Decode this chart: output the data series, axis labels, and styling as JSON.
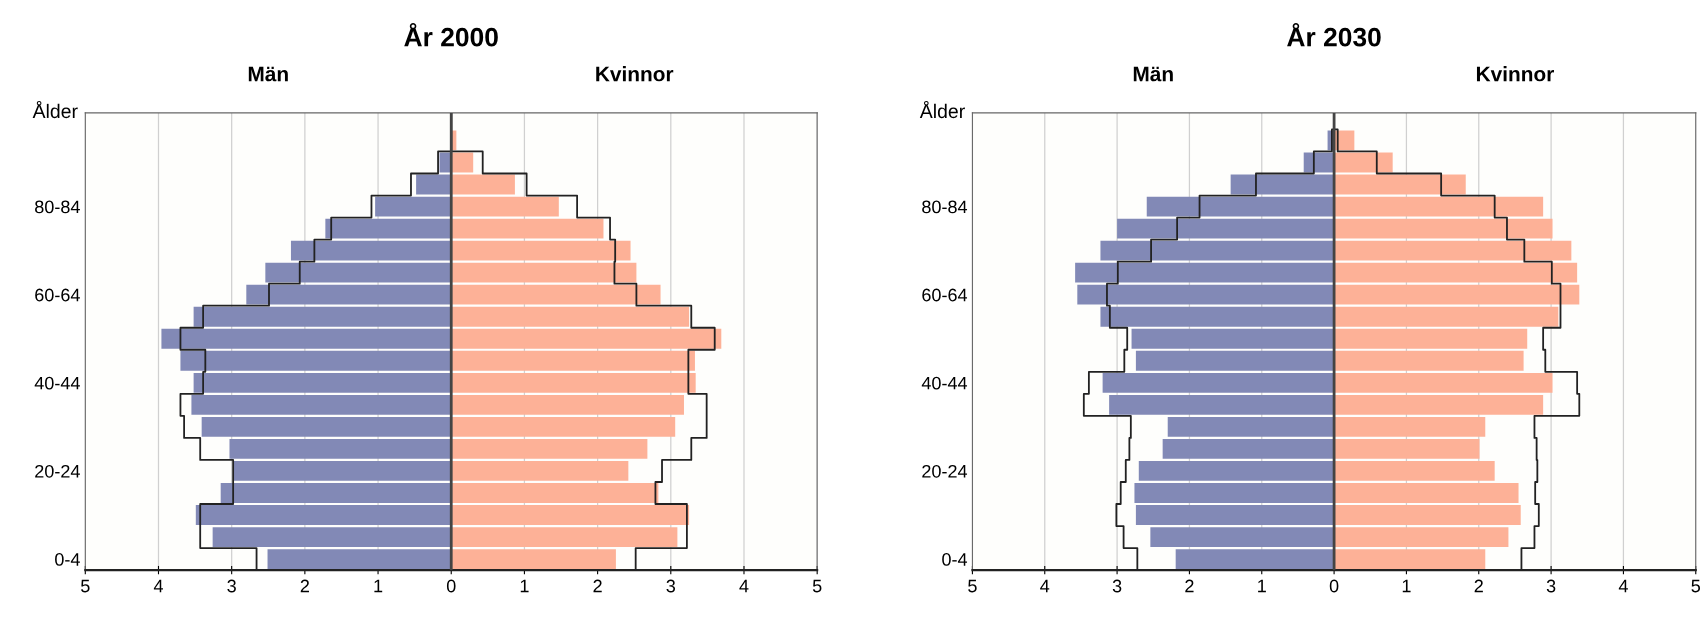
{
  "chart_data": [
    {
      "type": "bar",
      "orientation": "horizontal",
      "stacked": true,
      "title": "År 2000",
      "ylabel": "Ålder",
      "annotations": [
        "Män",
        "Kvinnor"
      ],
      "categories": [
        null,
        null,
        null,
        null,
        "80-84",
        null,
        null,
        null,
        "60-64",
        null,
        null,
        null,
        "40-44",
        null,
        null,
        null,
        "20-24",
        null,
        null,
        null,
        "0-4"
      ],
      "series": [
        {
          "color": "#8289b6",
          "values": [
            null,
            0,
            -0.16,
            -0.48,
            -1.04,
            -1.72,
            -2.19,
            -2.54,
            -2.8,
            -3.52,
            -3.96,
            -3.7,
            -3.52,
            -3.55,
            -3.41,
            -3.03,
            -2.97,
            -3.15,
            -3.49,
            -3.26,
            -2.51
          ]
        },
        {
          "color": "#fdb197",
          "values": [
            null,
            0.07,
            0.3,
            0.87,
            1.47,
            2.08,
            2.45,
            2.53,
            2.86,
            3.25,
            3.69,
            3.33,
            3.34,
            3.18,
            3.06,
            2.68,
            2.42,
            2.83,
            3.25,
            3.09,
            2.25
          ]
        },
        {
          "type": "step",
          "color": "#222222",
          "values": [
            0,
            0,
            -0.18,
            -0.55,
            -1.09,
            -1.64,
            -1.87,
            -2.07,
            -2.49,
            -3.39,
            -3.7,
            -3.36,
            -3.39,
            -3.7,
            -3.65,
            -3.43,
            -2.98,
            -2.98,
            -3.43,
            -3.43,
            -2.66
          ]
        },
        {
          "type": "step",
          "color": "#222222",
          "values": [
            0,
            0,
            0.43,
            1.03,
            1.72,
            2.17,
            2.24,
            2.23,
            2.53,
            3.28,
            3.6,
            3.24,
            3.24,
            3.49,
            3.49,
            3.28,
            2.88,
            2.79,
            3.22,
            3.22,
            2.52
          ]
        }
      ],
      "xlim": [
        -5,
        5
      ],
      "xticks": [
        {
          "value": -5,
          "label": "5"
        },
        {
          "value": -4,
          "label": "4"
        },
        {
          "value": -3,
          "label": "3"
        },
        {
          "value": -2,
          "label": "2"
        },
        {
          "value": -1,
          "label": "1"
        },
        0,
        1,
        2,
        3,
        4,
        5
      ],
      "ref_lines": [
        {
          "axis": "x",
          "value": 0,
          "color": "#444444"
        }
      ],
      "grid": "x",
      "legend": false
    },
    {
      "type": "bar",
      "orientation": "horizontal",
      "stacked": true,
      "title": "År 2030",
      "ylabel": "Ålder",
      "annotations": [
        "Män",
        "Kvinnor"
      ],
      "categories": [
        null,
        null,
        null,
        null,
        "80-84",
        null,
        null,
        null,
        "60-64",
        null,
        null,
        null,
        "40-44",
        null,
        null,
        null,
        "20-24",
        null,
        null,
        null,
        "0-4"
      ],
      "series": [
        {
          "color": "#8289b6",
          "values": [
            null,
            -0.09,
            -0.42,
            -1.43,
            -2.59,
            -3.0,
            -3.23,
            -3.58,
            -3.55,
            -3.23,
            -2.8,
            -2.74,
            -3.2,
            -3.11,
            -2.3,
            -2.37,
            -2.7,
            -2.76,
            -2.74,
            -2.54,
            -2.19
          ]
        },
        {
          "color": "#fdb197",
          "values": [
            null,
            0.28,
            0.81,
            1.82,
            2.89,
            3.02,
            3.28,
            3.36,
            3.39,
            3.1,
            2.67,
            2.62,
            3.02,
            2.89,
            2.09,
            2.01,
            2.22,
            2.55,
            2.58,
            2.41,
            2.09
          ]
        },
        {
          "type": "step",
          "color": "#222222",
          "values": [
            0,
            -0.03,
            -0.28,
            -1.08,
            -1.86,
            -2.17,
            -2.53,
            -2.99,
            -3.14,
            -3.1,
            -2.86,
            -2.9,
            -3.39,
            -3.46,
            -2.81,
            -2.83,
            -2.88,
            -2.95,
            -3.01,
            -2.91,
            -2.72
          ]
        },
        {
          "type": "step",
          "color": "#222222",
          "values": [
            0,
            0.05,
            0.59,
            1.48,
            2.22,
            2.39,
            2.63,
            3.01,
            3.13,
            3.13,
            2.89,
            2.92,
            3.36,
            3.39,
            2.77,
            2.8,
            2.81,
            2.78,
            2.83,
            2.77,
            2.59
          ]
        }
      ],
      "xlim": [
        -5,
        5
      ],
      "xticks": [
        {
          "value": -5,
          "label": "5"
        },
        {
          "value": -4,
          "label": "4"
        },
        {
          "value": -3,
          "label": "3"
        },
        {
          "value": -2,
          "label": "2"
        },
        {
          "value": -1,
          "label": "1"
        },
        0,
        1,
        2,
        3,
        4,
        5
      ],
      "ref_lines": [
        {
          "axis": "x",
          "value": 0,
          "color": "#444444"
        }
      ],
      "grid": "x",
      "legend": false
    }
  ]
}
